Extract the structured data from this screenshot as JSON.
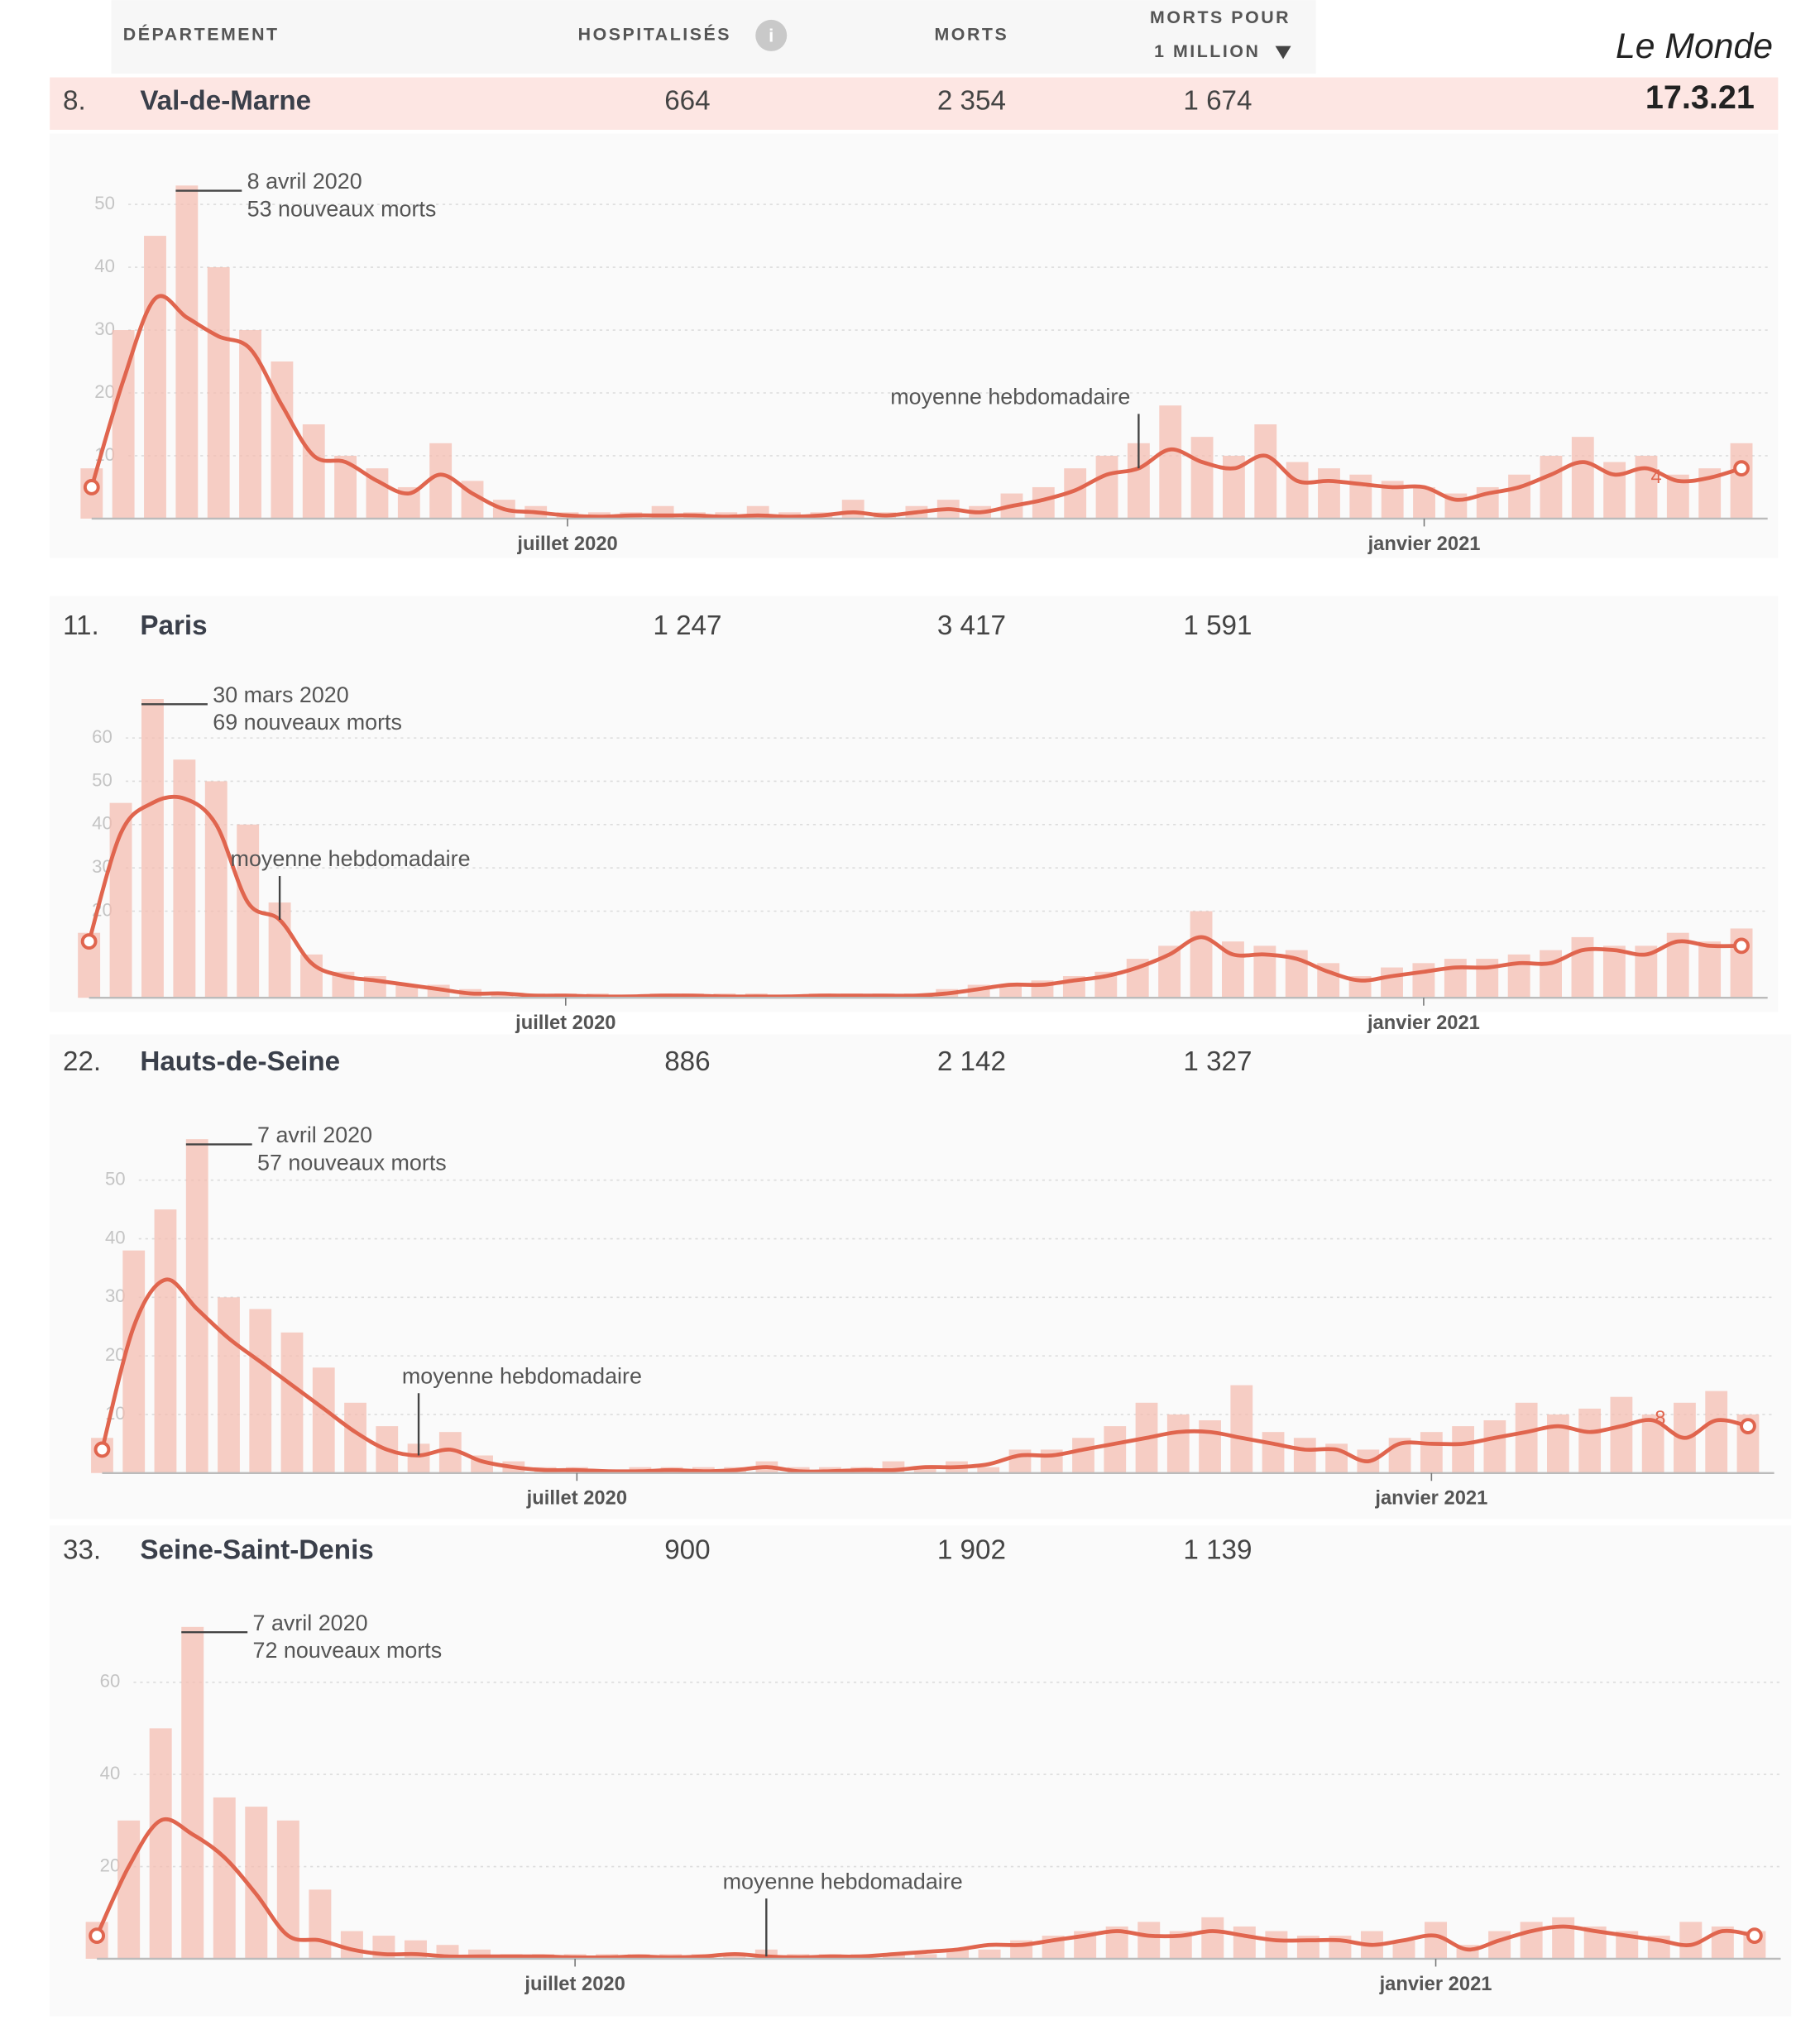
{
  "header": {
    "columns": [
      "DÉPARTEMENT",
      "HOSPITALISÉS",
      "MORTS",
      [
        "MORTS POUR",
        "1 MILLION"
      ]
    ],
    "info_icon": "i",
    "brand": "Le Monde",
    "date": "17.3.21"
  },
  "rows": [
    [
      "8.",
      "Val-de-Marne",
      "664",
      "2 354",
      "1 674"
    ],
    [
      "11.",
      "Paris",
      "1 247",
      "3 417",
      "1 591"
    ],
    [
      "22.",
      "Hauts-de-Seine",
      "886",
      "2 142",
      "1 327"
    ],
    [
      "33.",
      "Seine-Saint-Denis",
      "900",
      "1 902",
      "1 139"
    ]
  ],
  "chart_data": [
    {
      "type": "bar",
      "annotations": [
        "8 avril 2020",
        "53 nouveaux morts"
      ],
      "end_label": "4",
      "categories": [
        null,
        null,
        null,
        null,
        null,
        null,
        null,
        null,
        null,
        null,
        null,
        null,
        null,
        null,
        null,
        "juillet 2020",
        null,
        null,
        null,
        null,
        null,
        null,
        null,
        null,
        null,
        null,
        null,
        null,
        null,
        null,
        null,
        null,
        null,
        null,
        null,
        null,
        null,
        null,
        null,
        null,
        null,
        null,
        "janvier 2021",
        null,
        null,
        null,
        null,
        null,
        null,
        null,
        null,
        null,
        null
      ],
      "ylim": [
        0,
        55
      ],
      "yticks": [
        10,
        20,
        30,
        40,
        50
      ],
      "grid": true,
      "series": [
        {
          "type": "bar",
          "color": "#f4bdb2",
          "values": [
            8,
            30,
            45,
            53,
            40,
            30,
            25,
            15,
            10,
            8,
            5,
            12,
            6,
            3,
            2,
            1,
            1,
            1,
            2,
            1,
            1,
            2,
            1,
            1,
            3,
            1,
            2,
            3,
            2,
            4,
            5,
            8,
            10,
            12,
            18,
            13,
            10,
            15,
            9,
            8,
            7,
            6,
            5,
            4,
            5,
            7,
            10,
            13,
            9,
            10,
            7,
            8,
            12
          ]
        },
        {
          "type": "line",
          "name": "moyenne hebdomadaire",
          "color": "#e0654e",
          "values": [
            5,
            22,
            35,
            32,
            29,
            27,
            18,
            10,
            9,
            6,
            4,
            7,
            4,
            1.5,
            1,
            0.5,
            0.3,
            0.5,
            0.5,
            0.5,
            0.3,
            0.5,
            0.3,
            0.5,
            1,
            0.5,
            1,
            1.5,
            1,
            2,
            3,
            4.5,
            7,
            8,
            11,
            9,
            8,
            10,
            6,
            6,
            5.5,
            5,
            5,
            3,
            4,
            5,
            7,
            9,
            7,
            8,
            6,
            6.5,
            8
          ]
        }
      ]
    },
    {
      "type": "bar",
      "annotations": [
        "30 mars 2020",
        "69 nouveaux morts"
      ],
      "categories": [
        null,
        null,
        null,
        null,
        null,
        null,
        null,
        null,
        null,
        null,
        null,
        null,
        null,
        null,
        null,
        "juillet 2020",
        null,
        null,
        null,
        null,
        null,
        null,
        null,
        null,
        null,
        null,
        null,
        null,
        null,
        null,
        null,
        null,
        null,
        null,
        null,
        null,
        null,
        null,
        null,
        null,
        null,
        null,
        "janvier 2021",
        null,
        null,
        null,
        null,
        null,
        null,
        null,
        null,
        null,
        null
      ],
      "ylim": [
        0,
        65
      ],
      "yticks": [
        20,
        30,
        40,
        50,
        60
      ],
      "grid": true,
      "series": [
        {
          "type": "bar",
          "color": "#f4bdb2",
          "values": [
            15,
            45,
            69,
            55,
            50,
            40,
            22,
            10,
            6,
            5,
            3,
            3,
            2,
            1,
            1,
            1,
            1,
            0,
            1,
            1,
            1,
            1,
            0,
            1,
            1,
            1,
            1,
            2,
            3,
            3,
            4,
            5,
            6,
            9,
            12,
            20,
            13,
            12,
            11,
            8,
            5,
            7,
            8,
            9,
            9,
            10,
            11,
            14,
            12,
            12,
            15,
            13,
            16
          ]
        },
        {
          "type": "line",
          "name": "moyenne hebdomadaire",
          "color": "#e0654e",
          "values": [
            13,
            38,
            45,
            46,
            40,
            22,
            18,
            8,
            5,
            4,
            3,
            2,
            1,
            1,
            0.5,
            0.5,
            0.3,
            0.3,
            0.5,
            0.5,
            0.3,
            0.3,
            0.3,
            0.5,
            0.5,
            0.5,
            0.5,
            1,
            2,
            3,
            3,
            4,
            5,
            7,
            10,
            14,
            10,
            10,
            9,
            6,
            4,
            5,
            6,
            7,
            7,
            8,
            8,
            11,
            11,
            10,
            13,
            12,
            12
          ]
        }
      ]
    },
    {
      "type": "bar",
      "annotations": [
        "7 avril 2020",
        "57 nouveaux morts"
      ],
      "end_label": "8",
      "categories": [
        null,
        null,
        null,
        null,
        null,
        null,
        null,
        null,
        null,
        null,
        null,
        null,
        null,
        null,
        null,
        "juillet 2020",
        null,
        null,
        null,
        null,
        null,
        null,
        null,
        null,
        null,
        null,
        null,
        null,
        null,
        null,
        null,
        null,
        null,
        null,
        null,
        null,
        null,
        null,
        null,
        null,
        null,
        null,
        "janvier 2021",
        null,
        null,
        null,
        null,
        null,
        null,
        null,
        null,
        null,
        null
      ],
      "ylim": [
        0,
        57
      ],
      "yticks": [
        10,
        20,
        30,
        40,
        50
      ],
      "grid": true,
      "series": [
        {
          "type": "bar",
          "color": "#f4bdb2",
          "values": [
            6,
            38,
            45,
            57,
            30,
            28,
            24,
            18,
            12,
            8,
            5,
            7,
            3,
            2,
            1,
            1,
            0,
            1,
            1,
            1,
            1,
            2,
            1,
            1,
            1,
            2,
            1,
            2,
            1,
            4,
            4,
            6,
            8,
            12,
            10,
            9,
            15,
            7,
            6,
            5,
            4,
            6,
            7,
            8,
            9,
            12,
            10,
            11,
            13,
            10,
            12,
            14,
            10
          ]
        },
        {
          "type": "line",
          "name": "moyenne hebdomadaire",
          "color": "#e0654e",
          "values": [
            4,
            25,
            33,
            28,
            23,
            19,
            15,
            11,
            7,
            4,
            3,
            4,
            2,
            1,
            0.5,
            0.5,
            0.3,
            0.3,
            0.5,
            0.3,
            0.5,
            1,
            0.3,
            0.3,
            0.5,
            0.5,
            1,
            1,
            1.5,
            3,
            3,
            4,
            5,
            6,
            7,
            7,
            6,
            5,
            4,
            4,
            2,
            5,
            5,
            5,
            6,
            7,
            8,
            7,
            8,
            9,
            6,
            9,
            8
          ]
        }
      ]
    },
    {
      "type": "bar",
      "annotations": [
        "7 avril 2020",
        "72 nouveaux morts"
      ],
      "categories": [
        null,
        null,
        null,
        null,
        null,
        null,
        null,
        null,
        null,
        null,
        null,
        null,
        null,
        null,
        null,
        "juillet 2020",
        null,
        null,
        null,
        null,
        null,
        null,
        null,
        null,
        null,
        null,
        null,
        null,
        null,
        null,
        null,
        null,
        null,
        null,
        null,
        null,
        null,
        null,
        null,
        null,
        null,
        null,
        "janvier 2021",
        null,
        null,
        null,
        null,
        null,
        null,
        null,
        null,
        null,
        null
      ],
      "ylim": [
        0,
        75
      ],
      "yticks": [
        20,
        40,
        60
      ],
      "grid": true,
      "series": [
        {
          "type": "bar",
          "color": "#f4bdb2",
          "values": [
            8,
            30,
            50,
            72,
            35,
            33,
            30,
            15,
            6,
            5,
            4,
            3,
            2,
            1,
            1,
            1,
            1,
            1,
            1,
            1,
            1,
            2,
            1,
            1,
            1,
            1,
            1,
            2,
            2,
            4,
            5,
            6,
            7,
            8,
            6,
            9,
            7,
            6,
            5,
            5,
            6,
            4,
            8,
            3,
            6,
            8,
            9,
            7,
            6,
            5,
            8,
            7,
            6
          ]
        },
        {
          "type": "line",
          "name": "moyenne hebdomadaire",
          "color": "#e0654e",
          "values": [
            5,
            20,
            30,
            27,
            22,
            14,
            5,
            4,
            2,
            1,
            1,
            0.5,
            0.5,
            0.5,
            0.5,
            0.3,
            0.3,
            0.5,
            0.3,
            0.5,
            1,
            0.5,
            0.3,
            0.5,
            0.5,
            1,
            1.5,
            2,
            3,
            3,
            4,
            5,
            6,
            5,
            5,
            6,
            5,
            4,
            4,
            4,
            3,
            4,
            5,
            2,
            4,
            6,
            7,
            6,
            5,
            4,
            3,
            6,
            5
          ]
        }
      ]
    }
  ]
}
